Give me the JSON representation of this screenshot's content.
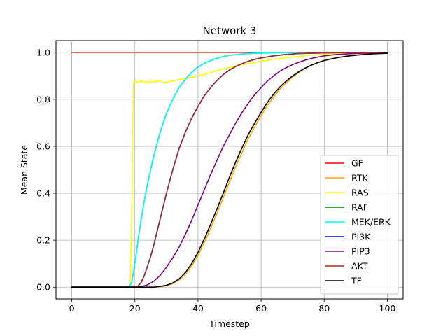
{
  "chart_data": {
    "type": "line",
    "title": "Network 3",
    "xlabel": "Timestep",
    "ylabel": "Mean State",
    "xlim": [
      -5,
      105
    ],
    "ylim": [
      -0.05,
      1.05
    ],
    "xticks": [
      0,
      20,
      40,
      60,
      80,
      100
    ],
    "yticks": [
      0.0,
      0.2,
      0.4,
      0.6,
      0.8,
      1.0
    ],
    "xtick_labels": [
      "0",
      "20",
      "40",
      "60",
      "80",
      "100"
    ],
    "ytick_labels": [
      "0.0",
      "0.2",
      "0.4",
      "0.6",
      "0.8",
      "1.0"
    ],
    "grid": true,
    "legend_position": "lower-right",
    "series": [
      {
        "name": "GF",
        "color": "#ff0000",
        "points": [
          [
            0,
            1.0
          ],
          [
            100,
            1.0
          ]
        ]
      },
      {
        "name": "RTK",
        "color": "#ffa500",
        "points": [
          [
            0,
            0
          ],
          [
            20,
            0
          ],
          [
            26,
            0
          ],
          [
            28,
            0.002
          ],
          [
            30,
            0.006
          ],
          [
            32,
            0.015
          ],
          [
            34,
            0.03
          ],
          [
            36,
            0.055
          ],
          [
            38,
            0.09
          ],
          [
            40,
            0.135
          ],
          [
            42,
            0.19
          ],
          [
            44,
            0.25
          ],
          [
            46,
            0.315
          ],
          [
            48,
            0.38
          ],
          [
            50,
            0.45
          ],
          [
            52,
            0.515
          ],
          [
            54,
            0.575
          ],
          [
            56,
            0.635
          ],
          [
            58,
            0.685
          ],
          [
            60,
            0.73
          ],
          [
            62,
            0.775
          ],
          [
            64,
            0.81
          ],
          [
            66,
            0.845
          ],
          [
            68,
            0.87
          ],
          [
            70,
            0.895
          ],
          [
            72,
            0.915
          ],
          [
            74,
            0.932
          ],
          [
            76,
            0.945
          ],
          [
            78,
            0.957
          ],
          [
            80,
            0.966
          ],
          [
            84,
            0.978
          ],
          [
            88,
            0.986
          ],
          [
            92,
            0.991
          ],
          [
            96,
            0.995
          ],
          [
            100,
            0.997
          ]
        ]
      },
      {
        "name": "RAS",
        "color": "#ffff00",
        "points": [
          [
            0,
            0
          ],
          [
            18.5,
            0
          ],
          [
            19,
            0.3
          ],
          [
            19.5,
            0.87
          ],
          [
            20,
            0.875
          ],
          [
            21,
            0.873
          ],
          [
            22,
            0.878
          ],
          [
            23,
            0.874
          ],
          [
            24,
            0.876
          ],
          [
            25,
            0.872
          ],
          [
            26,
            0.877
          ],
          [
            27,
            0.875
          ],
          [
            28,
            0.879
          ],
          [
            29,
            0.873
          ],
          [
            30,
            0.872
          ],
          [
            31,
            0.876
          ],
          [
            32,
            0.878
          ],
          [
            33,
            0.881
          ],
          [
            34,
            0.884
          ],
          [
            36,
            0.888
          ],
          [
            38,
            0.893
          ],
          [
            40,
            0.9
          ],
          [
            42,
            0.906
          ],
          [
            44,
            0.914
          ],
          [
            46,
            0.922
          ],
          [
            48,
            0.93
          ],
          [
            50,
            0.935
          ],
          [
            52,
            0.942
          ],
          [
            54,
            0.947
          ],
          [
            56,
            0.952
          ],
          [
            58,
            0.957
          ],
          [
            60,
            0.962
          ],
          [
            64,
            0.97
          ],
          [
            68,
            0.977
          ],
          [
            72,
            0.983
          ],
          [
            76,
            0.988
          ],
          [
            80,
            0.991
          ],
          [
            86,
            0.994
          ],
          [
            92,
            0.996
          ],
          [
            100,
            0.998
          ]
        ]
      },
      {
        "name": "RAF",
        "color": "#008000",
        "points": [
          [
            0,
            0
          ],
          [
            18,
            0
          ],
          [
            19,
            0.02
          ],
          [
            20,
            0.1
          ],
          [
            21,
            0.2
          ],
          [
            22,
            0.29
          ],
          [
            23,
            0.37
          ],
          [
            24,
            0.44
          ],
          [
            26,
            0.56
          ],
          [
            28,
            0.66
          ],
          [
            30,
            0.74
          ],
          [
            32,
            0.8
          ],
          [
            34,
            0.85
          ],
          [
            36,
            0.885
          ],
          [
            38,
            0.915
          ],
          [
            40,
            0.938
          ],
          [
            42,
            0.953
          ],
          [
            44,
            0.965
          ],
          [
            46,
            0.975
          ],
          [
            48,
            0.982
          ],
          [
            50,
            0.987
          ],
          [
            54,
            0.993
          ],
          [
            58,
            0.996
          ],
          [
            64,
            0.998
          ],
          [
            70,
            0.999
          ],
          [
            100,
            1.0
          ]
        ]
      },
      {
        "name": "MEK/ERK",
        "color": "#00ffff",
        "points": [
          [
            0,
            0
          ],
          [
            18,
            0
          ],
          [
            19,
            0.02
          ],
          [
            20,
            0.1
          ],
          [
            21,
            0.2
          ],
          [
            22,
            0.29
          ],
          [
            23,
            0.37
          ],
          [
            24,
            0.44
          ],
          [
            26,
            0.56
          ],
          [
            28,
            0.66
          ],
          [
            30,
            0.74
          ],
          [
            32,
            0.8
          ],
          [
            34,
            0.85
          ],
          [
            36,
            0.885
          ],
          [
            38,
            0.915
          ],
          [
            40,
            0.938
          ],
          [
            42,
            0.953
          ],
          [
            44,
            0.965
          ],
          [
            46,
            0.975
          ],
          [
            48,
            0.982
          ],
          [
            50,
            0.987
          ],
          [
            54,
            0.993
          ],
          [
            58,
            0.996
          ],
          [
            64,
            0.998
          ],
          [
            70,
            0.999
          ],
          [
            100,
            1.0
          ]
        ]
      },
      {
        "name": "PI3K",
        "color": "#0000ff",
        "points": [
          [
            0,
            0
          ],
          [
            20,
            0
          ],
          [
            21,
            0.005
          ],
          [
            22,
            0.02
          ],
          [
            23,
            0.05
          ],
          [
            24,
            0.09
          ],
          [
            25,
            0.13
          ],
          [
            26,
            0.18
          ],
          [
            28,
            0.29
          ],
          [
            30,
            0.4
          ],
          [
            32,
            0.5
          ],
          [
            34,
            0.59
          ],
          [
            36,
            0.66
          ],
          [
            38,
            0.72
          ],
          [
            40,
            0.77
          ],
          [
            42,
            0.815
          ],
          [
            44,
            0.85
          ],
          [
            46,
            0.88
          ],
          [
            48,
            0.905
          ],
          [
            50,
            0.925
          ],
          [
            52,
            0.94
          ],
          [
            54,
            0.952
          ],
          [
            56,
            0.962
          ],
          [
            58,
            0.97
          ],
          [
            60,
            0.976
          ],
          [
            64,
            0.985
          ],
          [
            68,
            0.991
          ],
          [
            72,
            0.995
          ],
          [
            78,
            0.997
          ],
          [
            86,
            0.999
          ],
          [
            100,
            0.999
          ]
        ]
      },
      {
        "name": "PIP3",
        "color": "#800080",
        "points": [
          [
            0,
            0
          ],
          [
            20,
            0
          ],
          [
            22,
            0.002
          ],
          [
            24,
            0.01
          ],
          [
            26,
            0.025
          ],
          [
            28,
            0.05
          ],
          [
            30,
            0.085
          ],
          [
            32,
            0.125
          ],
          [
            34,
            0.17
          ],
          [
            36,
            0.225
          ],
          [
            38,
            0.285
          ],
          [
            40,
            0.35
          ],
          [
            42,
            0.415
          ],
          [
            44,
            0.48
          ],
          [
            46,
            0.54
          ],
          [
            48,
            0.6
          ],
          [
            50,
            0.65
          ],
          [
            52,
            0.7
          ],
          [
            54,
            0.745
          ],
          [
            56,
            0.785
          ],
          [
            58,
            0.82
          ],
          [
            60,
            0.85
          ],
          [
            62,
            0.878
          ],
          [
            64,
            0.9
          ],
          [
            66,
            0.92
          ],
          [
            68,
            0.935
          ],
          [
            70,
            0.948
          ],
          [
            72,
            0.958
          ],
          [
            74,
            0.967
          ],
          [
            76,
            0.974
          ],
          [
            78,
            0.98
          ],
          [
            80,
            0.985
          ],
          [
            84,
            0.991
          ],
          [
            88,
            0.994
          ],
          [
            92,
            0.996
          ],
          [
            100,
            0.998
          ]
        ]
      },
      {
        "name": "AKT",
        "color": "#a52a2a",
        "points": [
          [
            0,
            0
          ],
          [
            20,
            0
          ],
          [
            21,
            0.005
          ],
          [
            22,
            0.02
          ],
          [
            23,
            0.05
          ],
          [
            24,
            0.09
          ],
          [
            25,
            0.13
          ],
          [
            26,
            0.18
          ],
          [
            28,
            0.29
          ],
          [
            30,
            0.4
          ],
          [
            32,
            0.5
          ],
          [
            34,
            0.59
          ],
          [
            36,
            0.66
          ],
          [
            38,
            0.72
          ],
          [
            40,
            0.77
          ],
          [
            42,
            0.815
          ],
          [
            44,
            0.85
          ],
          [
            46,
            0.88
          ],
          [
            48,
            0.905
          ],
          [
            50,
            0.925
          ],
          [
            52,
            0.94
          ],
          [
            54,
            0.952
          ],
          [
            56,
            0.962
          ],
          [
            58,
            0.97
          ],
          [
            60,
            0.976
          ],
          [
            64,
            0.985
          ],
          [
            68,
            0.991
          ],
          [
            72,
            0.995
          ],
          [
            78,
            0.997
          ],
          [
            86,
            0.999
          ],
          [
            100,
            0.999
          ]
        ]
      },
      {
        "name": "TF",
        "color": "#000000",
        "points": [
          [
            0,
            0
          ],
          [
            20,
            0
          ],
          [
            26,
            0
          ],
          [
            28,
            0.003
          ],
          [
            30,
            0.008
          ],
          [
            32,
            0.018
          ],
          [
            34,
            0.035
          ],
          [
            36,
            0.062
          ],
          [
            38,
            0.1
          ],
          [
            40,
            0.148
          ],
          [
            42,
            0.205
          ],
          [
            44,
            0.268
          ],
          [
            46,
            0.333
          ],
          [
            48,
            0.4
          ],
          [
            50,
            0.47
          ],
          [
            52,
            0.535
          ],
          [
            54,
            0.595
          ],
          [
            56,
            0.652
          ],
          [
            58,
            0.7
          ],
          [
            60,
            0.745
          ],
          [
            62,
            0.787
          ],
          [
            64,
            0.823
          ],
          [
            66,
            0.853
          ],
          [
            68,
            0.878
          ],
          [
            70,
            0.9
          ],
          [
            72,
            0.918
          ],
          [
            74,
            0.933
          ],
          [
            76,
            0.946
          ],
          [
            78,
            0.956
          ],
          [
            80,
            0.965
          ],
          [
            84,
            0.977
          ],
          [
            88,
            0.985
          ],
          [
            92,
            0.99
          ],
          [
            96,
            0.994
          ],
          [
            100,
            0.996
          ]
        ]
      }
    ]
  }
}
